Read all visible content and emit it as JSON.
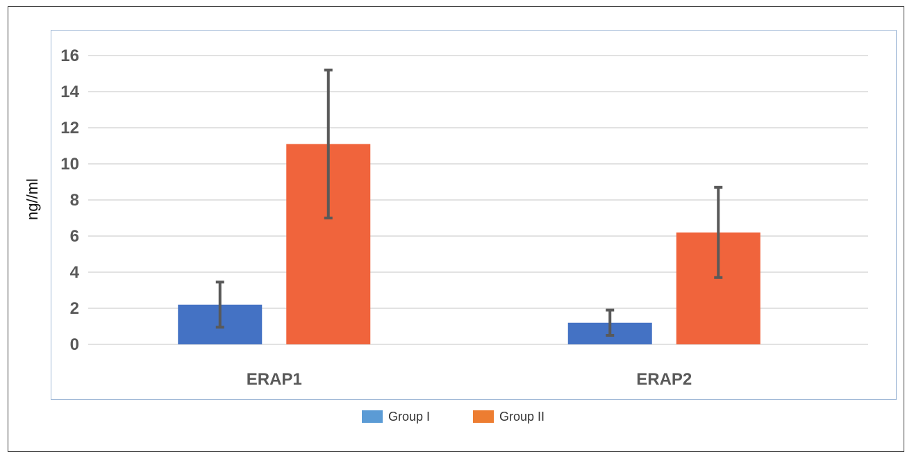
{
  "chart_data": {
    "type": "bar",
    "categories": [
      "ERAP1",
      "ERAP2"
    ],
    "series": [
      {
        "name": "Group I",
        "values": [
          2.2,
          1.2
        ],
        "error": [
          1.25,
          0.7
        ],
        "color": "#4472c4",
        "legend_color": "#5b9bd5"
      },
      {
        "name": "Group II",
        "values": [
          11.1,
          6.2
        ],
        "error": [
          4.1,
          2.5
        ],
        "color": "#f0643c",
        "legend_color": "#ed7d31"
      }
    ],
    "ylabel": "ng//ml",
    "ylim": [
      0,
      16
    ],
    "yticks": [
      0,
      2,
      4,
      6,
      8,
      10,
      12,
      14,
      16
    ],
    "grid": true,
    "legend_position": "bottom",
    "error_bar_color": "#595959"
  }
}
